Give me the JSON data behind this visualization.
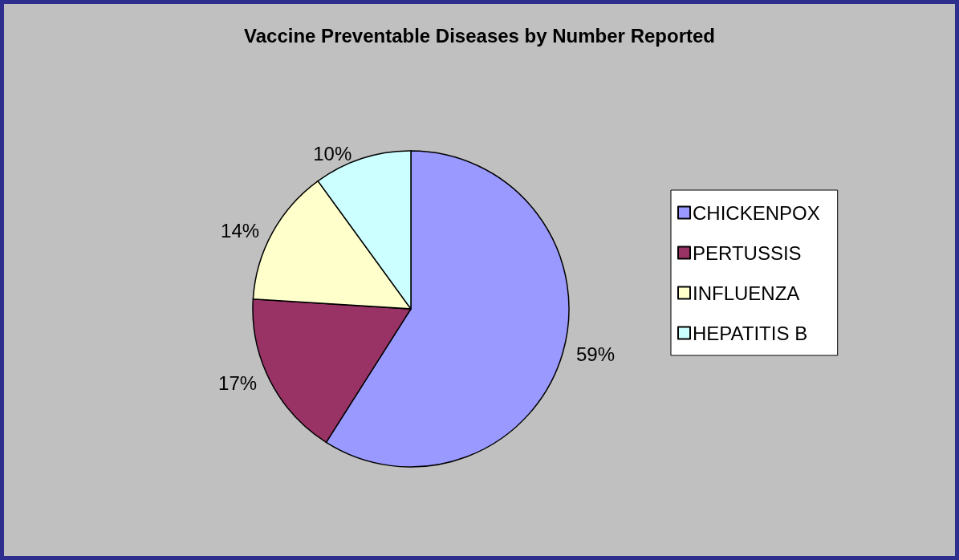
{
  "chart_data": {
    "type": "pie",
    "title": "Vaccine Preventable Diseases by Number Reported",
    "categories": [
      "CHICKENPOX",
      "PERTUSSIS",
      "INFLUENZA",
      "HEPATITIS B"
    ],
    "values": [
      59,
      17,
      14,
      10
    ],
    "colors": [
      "#9999ff",
      "#993366",
      "#ffffcc",
      "#ccffff"
    ],
    "value_labels": [
      "59%",
      "17%",
      "14%",
      "10%"
    ],
    "legend": "right"
  }
}
